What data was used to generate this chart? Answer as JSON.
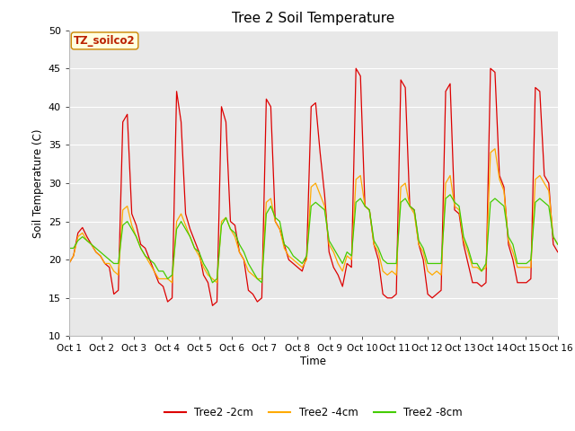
{
  "title": "Tree 2 Soil Temperature",
  "ylabel": "Soil Temperature (C)",
  "xlabel": "Time",
  "annotation": "TZ_soilco2",
  "ylim": [
    10,
    50
  ],
  "xlim": [
    0,
    15
  ],
  "xtick_labels": [
    "Oct 1",
    "Oct 2",
    "Oct 3",
    "Oct 4",
    "Oct 5",
    "Oct 6",
    "Oct 7",
    "Oct 8",
    "Oct 9",
    "Oct 10",
    "Oct 11",
    "Oct 12",
    "Oct 13",
    "Oct 14",
    "Oct 15",
    "Oct 16"
  ],
  "ytick_values": [
    10,
    15,
    20,
    25,
    30,
    35,
    40,
    45,
    50
  ],
  "legend": [
    "Tree2 -2cm",
    "Tree2 -4cm",
    "Tree2 -8cm"
  ],
  "colors": [
    "#dd0000",
    "#ffaa00",
    "#44cc00"
  ],
  "figure_bg": "#ffffff",
  "plot_bg": "#e8e8e8",
  "series_2cm": [
    19.5,
    20.5,
    23.5,
    24.2,
    23.0,
    22.0,
    21.0,
    20.5,
    19.5,
    19.0,
    15.5,
    16.0,
    38.0,
    39.0,
    26.0,
    24.5,
    22.0,
    21.5,
    20.0,
    18.5,
    17.0,
    16.5,
    14.5,
    15.0,
    42.0,
    38.0,
    26.0,
    24.0,
    22.5,
    21.0,
    18.0,
    17.0,
    14.0,
    14.5,
    40.0,
    38.0,
    25.0,
    24.5,
    21.0,
    20.0,
    16.0,
    15.5,
    14.5,
    15.0,
    41.0,
    40.0,
    25.0,
    24.0,
    22.0,
    20.0,
    19.5,
    19.0,
    18.5,
    20.5,
    40.0,
    40.5,
    34.0,
    28.5,
    21.0,
    19.0,
    18.0,
    16.5,
    19.5,
    19.0,
    45.0,
    44.0,
    27.0,
    26.5,
    22.0,
    20.0,
    15.5,
    15.0,
    15.0,
    15.5,
    43.5,
    42.5,
    27.0,
    26.5,
    22.0,
    20.0,
    15.5,
    15.0,
    15.5,
    16.0,
    42.0,
    43.0,
    26.5,
    26.0,
    22.0,
    19.5,
    17.0,
    17.0,
    16.5,
    17.0,
    45.0,
    44.5,
    31.0,
    29.5,
    22.0,
    20.0,
    17.0,
    17.0,
    17.0,
    17.5,
    42.5,
    42.0,
    31.0,
    30.0,
    22.0,
    21.0
  ],
  "series_4cm": [
    19.5,
    20.5,
    23.0,
    23.5,
    22.5,
    22.0,
    21.0,
    20.5,
    19.5,
    19.5,
    18.5,
    18.0,
    26.5,
    27.0,
    24.5,
    23.0,
    21.5,
    20.5,
    19.5,
    18.5,
    17.5,
    17.5,
    17.5,
    17.0,
    25.0,
    26.0,
    24.5,
    23.0,
    21.5,
    20.5,
    19.0,
    18.0,
    17.5,
    17.0,
    25.0,
    25.5,
    24.0,
    23.0,
    21.0,
    20.0,
    18.5,
    18.0,
    17.5,
    17.5,
    27.5,
    28.0,
    25.0,
    24.0,
    21.5,
    20.5,
    20.0,
    19.5,
    19.0,
    20.0,
    29.5,
    30.0,
    28.5,
    27.0,
    22.0,
    21.0,
    19.5,
    18.5,
    20.5,
    20.0,
    30.5,
    31.0,
    27.0,
    26.5,
    22.0,
    21.0,
    18.5,
    18.0,
    18.5,
    18.0,
    29.5,
    30.0,
    27.0,
    26.0,
    22.0,
    21.0,
    18.5,
    18.0,
    18.5,
    18.0,
    30.0,
    31.0,
    27.0,
    26.5,
    22.5,
    21.0,
    19.0,
    19.0,
    18.5,
    19.0,
    34.0,
    34.5,
    30.5,
    29.0,
    22.5,
    21.0,
    19.0,
    19.0,
    19.0,
    19.0,
    30.5,
    31.0,
    30.0,
    29.0,
    23.0,
    22.0
  ],
  "series_8cm": [
    21.5,
    21.5,
    22.5,
    23.0,
    22.5,
    22.0,
    21.5,
    21.0,
    20.5,
    20.0,
    19.5,
    19.5,
    24.5,
    25.0,
    24.0,
    23.0,
    21.5,
    20.5,
    20.0,
    19.5,
    18.5,
    18.5,
    17.5,
    18.0,
    24.0,
    25.0,
    24.0,
    23.0,
    21.5,
    21.0,
    19.5,
    18.5,
    17.0,
    17.5,
    24.5,
    25.5,
    24.0,
    23.5,
    22.0,
    21.0,
    19.5,
    18.5,
    17.5,
    17.0,
    26.0,
    27.0,
    25.5,
    25.0,
    22.0,
    21.5,
    20.5,
    20.0,
    19.5,
    20.5,
    27.0,
    27.5,
    27.0,
    26.5,
    22.5,
    21.5,
    20.5,
    19.5,
    21.0,
    20.5,
    27.5,
    28.0,
    27.0,
    26.5,
    22.5,
    21.5,
    20.0,
    19.5,
    19.5,
    19.5,
    27.5,
    28.0,
    27.0,
    26.5,
    22.5,
    21.5,
    19.5,
    19.5,
    19.5,
    19.5,
    28.0,
    28.5,
    27.5,
    27.0,
    23.0,
    21.5,
    19.5,
    19.5,
    18.5,
    19.5,
    27.5,
    28.0,
    27.5,
    27.0,
    23.0,
    22.0,
    19.5,
    19.5,
    19.5,
    20.0,
    27.5,
    28.0,
    27.5,
    27.0,
    23.0,
    22.0
  ]
}
